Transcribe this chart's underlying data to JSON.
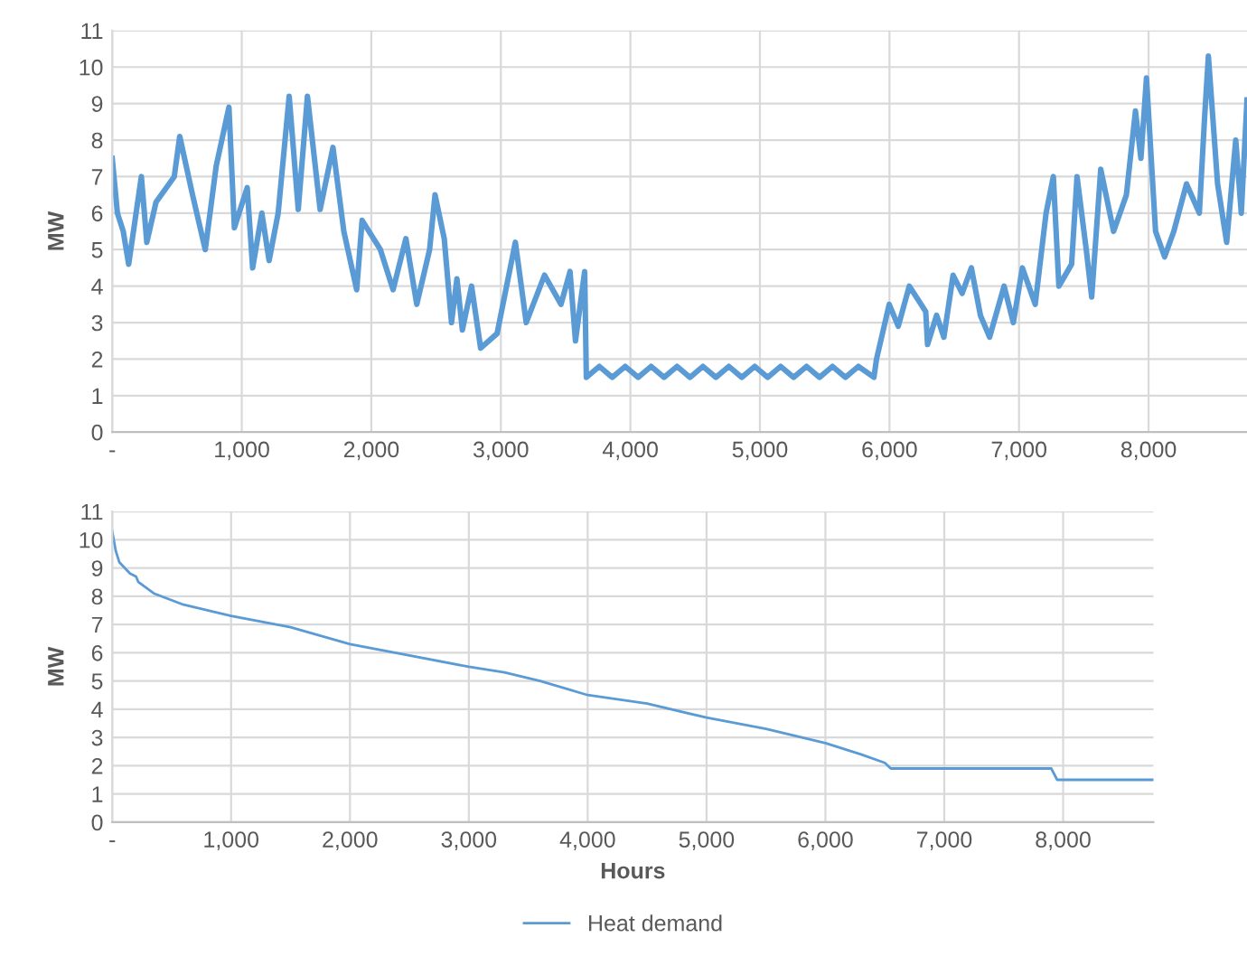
{
  "chart_data": [
    {
      "type": "line",
      "ylabel": "MW",
      "xlim": [
        0,
        8760
      ],
      "ylim": [
        0,
        11
      ],
      "xticks": [
        {
          "value": 0,
          "label": "-"
        },
        {
          "value": 1000,
          "label": "1,000"
        },
        {
          "value": 2000,
          "label": "2,000"
        },
        {
          "value": 3000,
          "label": "3,000"
        },
        {
          "value": 4000,
          "label": "4,000"
        },
        {
          "value": 5000,
          "label": "5,000"
        },
        {
          "value": 6000,
          "label": "6,000"
        },
        {
          "value": 7000,
          "label": "7,000"
        },
        {
          "value": 8000,
          "label": "8,000"
        }
      ],
      "yticks": [
        0,
        1,
        2,
        3,
        4,
        5,
        6,
        7,
        8,
        9,
        10,
        11
      ],
      "grid": true,
      "legend": false,
      "series": [
        {
          "color": "#5b9bd5",
          "x": [
            0,
            40,
            85,
            127,
            225,
            267,
            338,
            479,
            521,
            620,
            718,
            803,
            901,
            943,
            1042,
            1084,
            1155,
            1211,
            1281,
            1366,
            1436,
            1507,
            1605,
            1704,
            1788,
            1887,
            1929,
            2070,
            2168,
            2267,
            2351,
            2450,
            2492,
            2563,
            2619,
            2661,
            2703,
            2774,
            2844,
            2971,
            3112,
            3196,
            3337,
            3464,
            3534,
            3576,
            3647,
            3660,
            3760,
            3860,
            3960,
            4060,
            4160,
            4260,
            4360,
            4460,
            4560,
            4660,
            4760,
            4860,
            4960,
            5060,
            5160,
            5260,
            5360,
            5460,
            5560,
            5660,
            5760,
            5880,
            5900,
            5998,
            6068,
            6153,
            6280,
            6294,
            6364,
            6420,
            6491,
            6561,
            6632,
            6702,
            6773,
            6885,
            6956,
            7026,
            7125,
            7209,
            7265,
            7308,
            7406,
            7448,
            7519,
            7561,
            7631,
            7730,
            7829,
            7899,
            7941,
            7984,
            8054,
            8124,
            8195,
            8293,
            8392,
            8434,
            8462,
            8533,
            8603,
            8673,
            8716,
            8760
          ],
          "values": [
            7.5,
            6.0,
            5.5,
            4.6,
            7.0,
            5.2,
            6.3,
            7.0,
            8.1,
            6.5,
            5.0,
            7.3,
            8.9,
            5.6,
            6.7,
            4.5,
            6.0,
            4.7,
            6.0,
            9.2,
            6.1,
            9.2,
            6.1,
            7.8,
            5.5,
            3.9,
            5.8,
            5.0,
            3.9,
            5.3,
            3.5,
            5.0,
            6.5,
            5.3,
            3.0,
            4.2,
            2.8,
            4.0,
            2.3,
            2.7,
            5.2,
            3.0,
            4.3,
            3.5,
            4.4,
            2.5,
            4.4,
            1.5,
            1.8,
            1.5,
            1.8,
            1.5,
            1.8,
            1.5,
            1.8,
            1.5,
            1.8,
            1.5,
            1.8,
            1.5,
            1.8,
            1.5,
            1.8,
            1.5,
            1.8,
            1.5,
            1.8,
            1.5,
            1.8,
            1.5,
            2.0,
            3.5,
            2.9,
            4.0,
            3.3,
            2.4,
            3.2,
            2.6,
            4.3,
            3.8,
            4.5,
            3.2,
            2.6,
            4.0,
            3.0,
            4.5,
            3.5,
            6.0,
            7.0,
            4.0,
            4.6,
            7.0,
            5.0,
            3.7,
            7.2,
            5.5,
            6.5,
            8.8,
            7.5,
            9.7,
            5.5,
            4.8,
            5.5,
            6.8,
            6.0,
            8.7,
            10.3,
            6.8,
            5.2,
            8.0,
            6.0,
            9.1
          ]
        }
      ]
    },
    {
      "type": "line",
      "ylabel": "MW",
      "xlabel": "Hours",
      "xlim": [
        0,
        8760
      ],
      "ylim": [
        0,
        11
      ],
      "xticks": [
        {
          "value": 0,
          "label": "-"
        },
        {
          "value": 1000,
          "label": "1,000"
        },
        {
          "value": 2000,
          "label": "2,000"
        },
        {
          "value": 3000,
          "label": "3,000"
        },
        {
          "value": 4000,
          "label": "4,000"
        },
        {
          "value": 5000,
          "label": "5,000"
        },
        {
          "value": 6000,
          "label": "6,000"
        },
        {
          "value": 7000,
          "label": "7,000"
        },
        {
          "value": 8000,
          "label": "8,000"
        }
      ],
      "yticks": [
        0,
        1,
        2,
        3,
        4,
        5,
        6,
        7,
        8,
        9,
        10,
        11
      ],
      "grid": true,
      "legend": "bottom",
      "series": [
        {
          "name": "Heat demand",
          "color": "#5b9bd5",
          "x": [
            0,
            30,
            60,
            150,
            200,
            220,
            350,
            600,
            1000,
            1500,
            2000,
            2500,
            3000,
            3300,
            3600,
            4000,
            4500,
            5000,
            5500,
            6000,
            6300,
            6500,
            6550,
            7900,
            7950,
            8760
          ],
          "values": [
            10.3,
            9.6,
            9.2,
            8.8,
            8.7,
            8.5,
            8.1,
            7.7,
            7.3,
            6.9,
            6.3,
            5.9,
            5.5,
            5.3,
            5.0,
            4.5,
            4.2,
            3.7,
            3.3,
            2.8,
            2.4,
            2.1,
            1.9,
            1.9,
            1.5,
            1.5
          ]
        }
      ]
    }
  ]
}
